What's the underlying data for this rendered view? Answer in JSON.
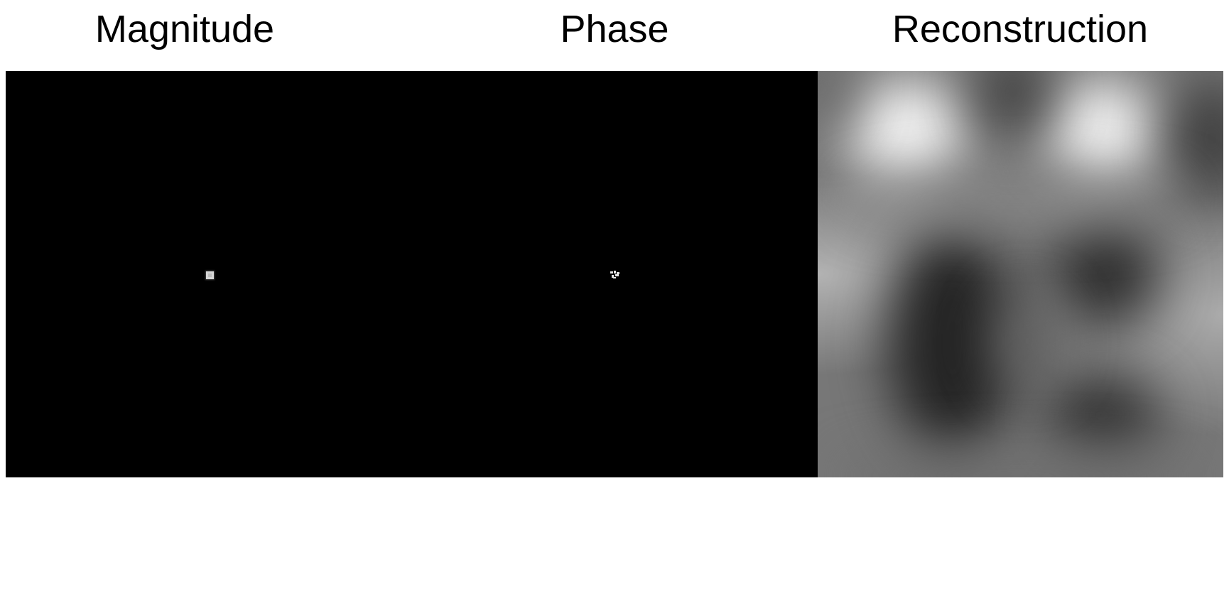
{
  "panels": {
    "magnitude": {
      "title": "Magnitude"
    },
    "phase": {
      "title": "Phase"
    },
    "reconstruction": {
      "title": "Reconstruction"
    }
  },
  "colors": {
    "background": "#ffffff",
    "spectrum_background": "#000000",
    "spectrum_point": "#d6d6d6",
    "reconstruction_base": "#777777"
  }
}
